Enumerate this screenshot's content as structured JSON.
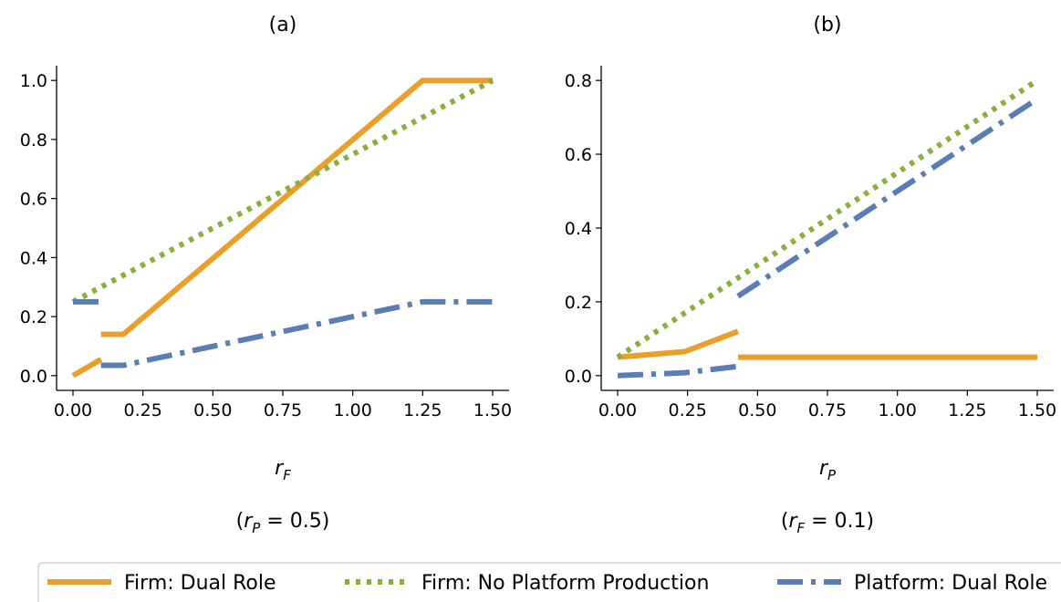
{
  "chart_data": [
    {
      "type": "line",
      "title": "(a)",
      "xlabel": "r_F",
      "xlabel_main": "r",
      "xlabel_sub": "F",
      "condition_prefix": "(",
      "condition_var": "r",
      "condition_sub": "P",
      "condition_suffix": " = 0.5)",
      "xlim": [
        0,
        1.5
      ],
      "ylim": [
        -0.05,
        1.05
      ],
      "xticks": [
        0,
        0.25,
        0.5,
        0.75,
        1.0,
        1.25,
        1.5
      ],
      "xtick_labels": [
        "0.00",
        "0.25",
        "0.50",
        "0.75",
        "1.00",
        "1.25",
        "1.50"
      ],
      "yticks": [
        0,
        0.2,
        0.4,
        0.6,
        0.8,
        1.0
      ],
      "ytick_labels": [
        "0.0",
        "0.2",
        "0.4",
        "0.6",
        "0.8",
        "1.0"
      ],
      "series": [
        {
          "key": "firm_dual",
          "segments": [
            [
              [
                0,
                0
              ],
              [
                0.1,
                0.055
              ]
            ],
            [
              [
                0.1,
                0.14
              ],
              [
                0.18,
                0.14
              ],
              [
                1.25,
                1.0
              ],
              [
                1.5,
                1.0
              ]
            ]
          ]
        },
        {
          "key": "firm_no_platform",
          "segments": [
            [
              [
                0,
                0.25
              ],
              [
                1.5,
                1.0
              ]
            ]
          ]
        },
        {
          "key": "platform_dual",
          "segments": [
            [
              [
                0,
                0.25
              ],
              [
                0.1,
                0.25
              ]
            ],
            [
              [
                0.1,
                0.035
              ],
              [
                0.18,
                0.035
              ],
              [
                1.25,
                0.25
              ],
              [
                1.5,
                0.25
              ]
            ]
          ]
        }
      ]
    },
    {
      "type": "line",
      "title": "(b)",
      "xlabel": "r_P",
      "xlabel_main": "r",
      "xlabel_sub": "P",
      "condition_prefix": "(",
      "condition_var": "r",
      "condition_sub": "F",
      "condition_suffix": " = 0.1)",
      "xlim": [
        0,
        1.5
      ],
      "ylim": [
        -0.04,
        0.84
      ],
      "xticks": [
        0,
        0.25,
        0.5,
        0.75,
        1.0,
        1.25,
        1.5
      ],
      "xtick_labels": [
        "0.00",
        "0.25",
        "0.50",
        "0.75",
        "1.00",
        "1.25",
        "1.50"
      ],
      "yticks": [
        0,
        0.2,
        0.4,
        0.6,
        0.8
      ],
      "ytick_labels": [
        "0.0",
        "0.2",
        "0.4",
        "0.6",
        "0.8"
      ],
      "series": [
        {
          "key": "firm_dual",
          "segments": [
            [
              [
                0,
                0.05
              ],
              [
                0.24,
                0.065
              ],
              [
                0.43,
                0.12
              ]
            ],
            [
              [
                0.43,
                0.05
              ],
              [
                1.5,
                0.05
              ]
            ]
          ]
        },
        {
          "key": "firm_no_platform",
          "segments": [
            [
              [
                0,
                0.05
              ],
              [
                1.5,
                0.8
              ]
            ]
          ]
        },
        {
          "key": "platform_dual",
          "segments": [
            [
              [
                0,
                0
              ],
              [
                0.24,
                0.008
              ],
              [
                0.43,
                0.025
              ]
            ],
            [
              [
                0.43,
                0.215
              ],
              [
                1.5,
                0.75
              ]
            ]
          ]
        }
      ]
    }
  ],
  "legend": {
    "placement": "bottom",
    "items": [
      {
        "key": "firm_dual",
        "label": "Firm: Dual Role",
        "color": "#E8A02A",
        "style": "solid"
      },
      {
        "key": "firm_no_platform",
        "label": "Firm: No Platform Production",
        "color": "#89B03C",
        "style": "dotted"
      },
      {
        "key": "platform_dual",
        "label": "Platform: Dual Role",
        "color": "#5A7DB3",
        "style": "dashdot"
      }
    ]
  }
}
